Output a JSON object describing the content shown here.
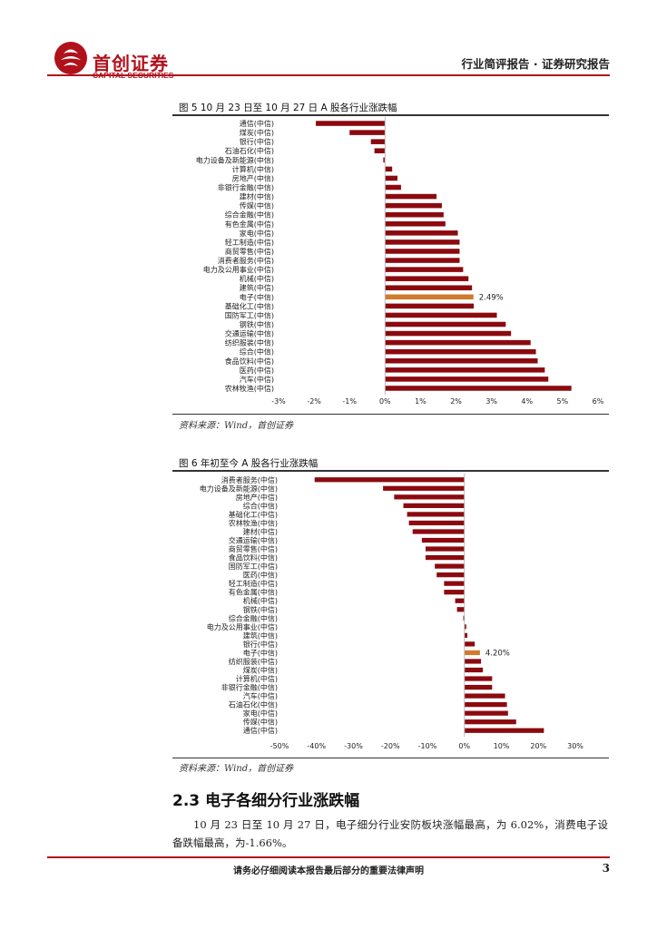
{
  "header": {
    "logo_name": "首创证券",
    "logo_sub": "CAPITAL SECURITIES",
    "report_type": "行业简评报告 · 证券研究报告"
  },
  "chart_data": [
    {
      "type": "bar",
      "orientation": "horizontal",
      "title": "图 5   10 月 23 日至 10 月 27 日 A 股各行业涨跌幅",
      "categories": [
        "通信(中信)",
        "煤炭(中信)",
        "银行(中信)",
        "石油石化(中信)",
        "电力设备及新能源(中信)",
        "计算机(中信)",
        "房地产(中信)",
        "非银行金融(中信)",
        "建材(中信)",
        "传媒(中信)",
        "综合金融(中信)",
        "有色金属(中信)",
        "家电(中信)",
        "轻工制造(中信)",
        "商贸零售(中信)",
        "消费者服务(中信)",
        "电力及公用事业(中信)",
        "机械(中信)",
        "建筑(中信)",
        "电子(中信)",
        "基础化工(中信)",
        "国防军工(中信)",
        "钢铁(中信)",
        "交通运输(中信)",
        "纺织服装(中信)",
        "综合(中信)",
        "食品饮料(中信)",
        "医药(中信)",
        "汽车(中信)",
        "农林牧渔(中信)"
      ],
      "values": [
        -1.95,
        -1.0,
        -0.4,
        -0.3,
        -0.05,
        0.2,
        0.35,
        0.45,
        1.45,
        1.6,
        1.65,
        1.7,
        2.05,
        2.1,
        2.1,
        2.1,
        2.2,
        2.35,
        2.45,
        2.49,
        2.5,
        3.15,
        3.4,
        3.55,
        4.1,
        4.25,
        4.3,
        4.5,
        4.6,
        5.25
      ],
      "highlight_index": 19,
      "data_label": "2.49%",
      "xlim": [
        -3,
        6
      ],
      "xticks": [
        "-3%",
        "-2%",
        "-1%",
        "0%",
        "1%",
        "2%",
        "3%",
        "4%",
        "5%",
        "6%"
      ],
      "bar_color": "#8b0a0f",
      "highlight_color": "#d07a2c",
      "grid": false,
      "source": "资料来源：Wind，首创证券"
    },
    {
      "type": "bar",
      "orientation": "horizontal",
      "title": "图 6  年初至今 A 股各行业涨跌幅",
      "categories": [
        "消费者服务(中信)",
        "电力设备及新能源(中信)",
        "房地产(中信)",
        "综合(中信)",
        "基础化工(中信)",
        "农林牧渔(中信)",
        "建材(中信)",
        "交通运输(中信)",
        "商贸零售(中信)",
        "食品饮料(中信)",
        "国防军工(中信)",
        "医药(中信)",
        "轻工制造(中信)",
        "有色金属(中信)",
        "机械(中信)",
        "钢铁(中信)",
        "综合金融(中信)",
        "电力及公用事业(中信)",
        "建筑(中信)",
        "银行(中信)",
        "电子(中信)",
        "纺织服装(中信)",
        "煤炭(中信)",
        "计算机(中信)",
        "非银行金融(中信)",
        "汽车(中信)",
        "石油石化(中信)",
        "家电(中信)",
        "传媒(中信)",
        "通信(中信)"
      ],
      "values": [
        -40.5,
        -22,
        -19,
        -16.5,
        -15.5,
        -15,
        -14,
        -11.5,
        -10.5,
        -10.5,
        -8,
        -7.5,
        -5.5,
        -5.5,
        -2.5,
        -2,
        -0.3,
        0.5,
        0.8,
        2.8,
        4.2,
        4.5,
        5,
        7.5,
        7.5,
        11,
        11.5,
        11.8,
        14,
        21.5
      ],
      "highlight_index": 20,
      "data_label": "4.20%",
      "xlim": [
        -50,
        30
      ],
      "xticks": [
        "-50%",
        "-40%",
        "-30%",
        "-20%",
        "-10%",
        "0%",
        "10%",
        "20%",
        "30%"
      ],
      "bar_color": "#8b0a0f",
      "highlight_color": "#d07a2c",
      "grid": false,
      "source": "资料来源：Wind，首创证券"
    }
  ],
  "section": {
    "number": "2.3",
    "title": "电子各细分行业涨跌幅"
  },
  "paragraph": "10 月 23 日至 10 月 27 日，电子细分行业安防板块涨幅最高，为 6.02%，消费电子设备跌幅最高，为-1.66%。",
  "footer": {
    "disclaimer": "请务必仔细阅读本报告最后部分的重要法律声明",
    "page": "3"
  }
}
